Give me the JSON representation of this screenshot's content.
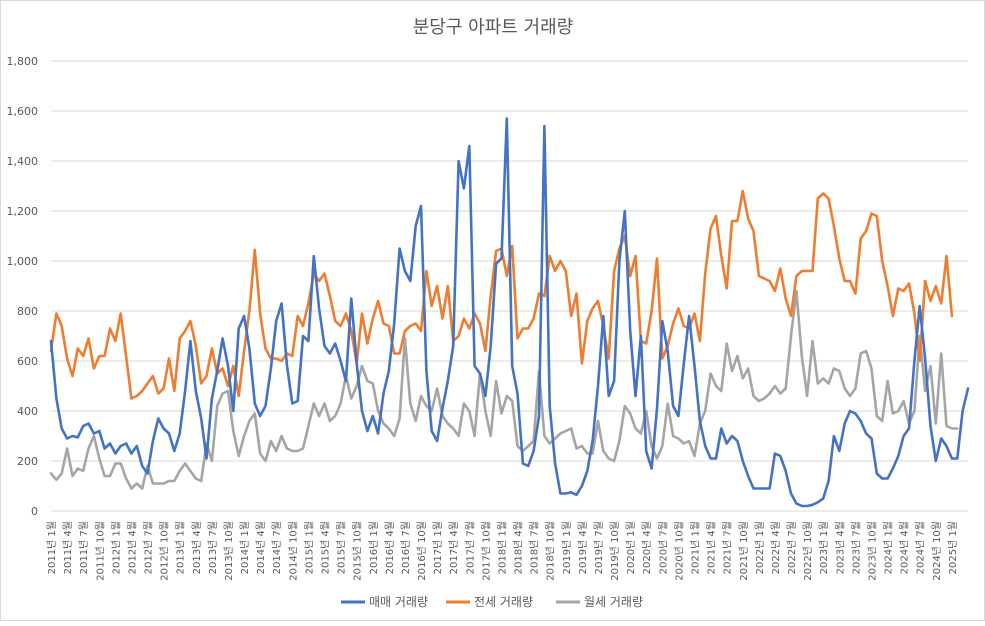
{
  "chart_data": {
    "type": "line",
    "title": "분당구 아파트 거래량",
    "xlabel": "",
    "ylabel": "",
    "ylim": [
      0,
      1800
    ],
    "grid": true,
    "legend_position": "bottom",
    "y_ticks": [
      "0",
      "200",
      "400",
      "600",
      "800",
      "1,000",
      "1,200",
      "1,400",
      "1,600",
      "1,800"
    ],
    "x_ticks": [
      "2011년 1월",
      "2011년 4월",
      "2011년 7월",
      "2011년 10월",
      "2012년 1월",
      "2012년 4월",
      "2012년 7월",
      "2012년 10월",
      "2013년 1월",
      "2013년 4월",
      "2013년 7월",
      "2013년 10월",
      "2014년 1월",
      "2014년 4월",
      "2014년 7월",
      "2014년 10월",
      "2015년 1월",
      "2015년 4월",
      "2015년 7월",
      "2015년 10월",
      "2016년 1월",
      "2016년 4월",
      "2016년 7월",
      "2016년 10월",
      "2017년 1월",
      "2017년 4월",
      "2017년 7월",
      "2017년 10월",
      "2018년 1월",
      "2018년 4월",
      "2018년 7월",
      "2018년 10월",
      "2019년 1월",
      "2019년 4월",
      "2019년 7월",
      "2019년 10월",
      "2020년 1월",
      "2020년 4월",
      "2020년 7월",
      "2020년 10월",
      "2021년 1월",
      "2021년 4월",
      "2021년 7월",
      "2021년 10월",
      "2022년 1월",
      "2022년 4월",
      "2022년 7월",
      "2022년 10월",
      "2023년 1월",
      "2023년 4월",
      "2023년 7월",
      "2023년 10월",
      "2024년 1월",
      "2024년 4월",
      "2024년 7월",
      "2024년 10월",
      "2025년 1월"
    ],
    "x_start": "2011년 1월",
    "x_step_months": 1,
    "colors": {
      "매매 거래량": "#4472c4",
      "전세 거래량": "#ed7d31",
      "월세 거래량": "#a5a5a5"
    },
    "series": [
      {
        "name": "매매 거래량",
        "values": [
          680,
          450,
          330,
          290,
          300,
          295,
          340,
          350,
          310,
          320,
          250,
          270,
          230,
          260,
          270,
          230,
          260,
          180,
          150,
          280,
          370,
          330,
          310,
          240,
          310,
          480,
          680,
          480,
          370,
          210,
          450,
          560,
          690,
          580,
          400,
          730,
          780,
          650,
          430,
          380,
          420,
          570,
          760,
          830,
          580,
          430,
          440,
          700,
          680,
          1020,
          810,
          660,
          630,
          670,
          600,
          520,
          850,
          590,
          400,
          320,
          380,
          310,
          470,
          560,
          750,
          1050,
          960,
          920,
          1140,
          1220,
          560,
          320,
          280,
          410,
          520,
          660,
          1400,
          1290,
          1460,
          580,
          550,
          460,
          660,
          990,
          1010,
          1570,
          580,
          470,
          190,
          180,
          240,
          380,
          1540,
          420,
          190,
          70,
          70,
          75,
          65,
          100,
          160,
          280,
          500,
          780,
          460,
          520,
          1000,
          1200,
          720,
          460,
          700,
          240,
          170,
          410,
          760,
          640,
          420,
          380,
          590,
          780,
          580,
          360,
          260,
          210,
          210,
          330,
          270,
          300,
          280,
          200,
          140,
          90,
          90,
          90,
          90,
          230,
          220,
          160,
          70,
          30,
          20,
          20,
          25,
          35,
          50,
          120,
          300,
          240,
          350,
          400,
          390,
          360,
          310,
          290,
          150,
          130,
          130,
          170,
          220,
          300,
          330,
          600,
          820,
          610,
          340,
          200,
          290,
          260,
          210,
          210,
          400,
          490
        ]
      },
      {
        "name": "전세 거래량",
        "values": [
          640,
          790,
          740,
          610,
          540,
          650,
          620,
          690,
          570,
          620,
          620,
          730,
          680,
          790,
          620,
          450,
          460,
          480,
          510,
          540,
          470,
          490,
          610,
          480,
          690,
          720,
          760,
          660,
          510,
          540,
          650,
          550,
          570,
          500,
          580,
          460,
          640,
          800,
          1045,
          790,
          650,
          610,
          610,
          600,
          630,
          620,
          780,
          740,
          830,
          950,
          920,
          950,
          860,
          760,
          740,
          790,
          720,
          590,
          790,
          670,
          770,
          840,
          750,
          740,
          630,
          630,
          720,
          740,
          750,
          720,
          960,
          820,
          900,
          770,
          900,
          680,
          700,
          770,
          730,
          790,
          750,
          640,
          860,
          1040,
          1050,
          940,
          1060,
          690,
          730,
          730,
          770,
          870,
          860,
          1020,
          960,
          1000,
          960,
          780,
          870,
          590,
          760,
          810,
          840,
          740,
          610,
          960,
          1050,
          1100,
          940,
          1020,
          680,
          670,
          800,
          1010,
          610,
          660,
          750,
          810,
          740,
          730,
          790,
          680,
          950,
          1130,
          1180,
          1020,
          890,
          1160,
          1160,
          1280,
          1170,
          1120,
          940,
          930,
          920,
          880,
          970,
          850,
          780,
          940,
          960,
          960,
          960,
          1250,
          1270,
          1250,
          1140,
          1010,
          920,
          920,
          870,
          1090,
          1120,
          1190,
          1180,
          1000,
          900,
          780,
          890,
          880,
          910,
          790,
          600,
          920,
          840,
          900,
          830,
          1020,
          780
        ]
      },
      {
        "name": "월세 거래량",
        "values": [
          150,
          125,
          150,
          250,
          140,
          170,
          160,
          250,
          300,
          210,
          140,
          140,
          190,
          190,
          130,
          90,
          110,
          90,
          180,
          110,
          110,
          110,
          120,
          120,
          160,
          190,
          160,
          130,
          120,
          270,
          200,
          420,
          470,
          480,
          320,
          220,
          300,
          360,
          390,
          230,
          200,
          280,
          240,
          300,
          250,
          240,
          240,
          250,
          340,
          430,
          380,
          430,
          360,
          380,
          430,
          540,
          450,
          500,
          580,
          520,
          510,
          400,
          350,
          330,
          300,
          370,
          690,
          430,
          360,
          460,
          420,
          400,
          490,
          380,
          350,
          330,
          300,
          430,
          400,
          300,
          550,
          400,
          300,
          520,
          390,
          460,
          440,
          260,
          240,
          260,
          280,
          560,
          300,
          270,
          290,
          310,
          320,
          330,
          250,
          260,
          230,
          230,
          360,
          240,
          210,
          200,
          280,
          420,
          390,
          330,
          310,
          400,
          260,
          210,
          260,
          430,
          300,
          290,
          270,
          280,
          220,
          350,
          400,
          550,
          500,
          480,
          670,
          560,
          620,
          530,
          570,
          460,
          440,
          450,
          470,
          500,
          470,
          490,
          700,
          880,
          620,
          460,
          680,
          510,
          530,
          510,
          570,
          560,
          490,
          460,
          490,
          630,
          640,
          570,
          380,
          360,
          520,
          390,
          400,
          440,
          350,
          400,
          700,
          480,
          580,
          350,
          630,
          340,
          330,
          330
        ]
      }
    ]
  }
}
